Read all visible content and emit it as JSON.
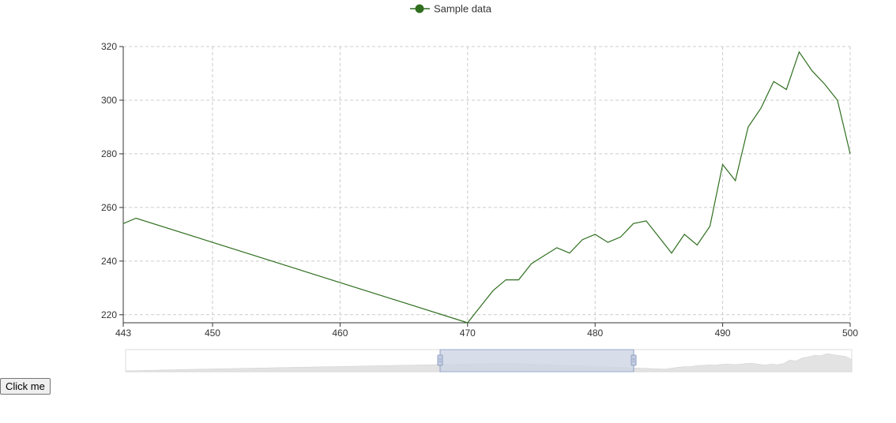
{
  "chart_data": {
    "type": "line",
    "title": "",
    "xlabel": "",
    "ylabel": "",
    "legend": {
      "position": "top-center",
      "entries": [
        "Sample data"
      ]
    },
    "grid": true,
    "xlim": [
      443,
      500
    ],
    "ylim": [
      217,
      320
    ],
    "x_ticks": [
      443,
      450,
      460,
      470,
      480,
      490,
      500
    ],
    "y_ticks": [
      220,
      240,
      260,
      280,
      300,
      320
    ],
    "series": [
      {
        "name": "Sample data",
        "color": "#2f6f1f",
        "x": [
          443,
          444,
          470,
          471,
          472,
          473,
          474,
          475,
          476,
          477,
          478,
          479,
          480,
          481,
          482,
          483,
          484,
          485,
          486,
          487,
          488,
          489,
          490,
          491,
          492,
          493,
          494,
          495,
          496,
          497,
          498,
          499,
          500
        ],
        "y": [
          254,
          256,
          217,
          223,
          229,
          233,
          233,
          239,
          242,
          245,
          243,
          248,
          250,
          247,
          249,
          254,
          255,
          249,
          243,
          250,
          246,
          253,
          276,
          270,
          290,
          297,
          307,
          304,
          318,
          311,
          306,
          300,
          280
        ]
      }
    ]
  },
  "overview": {
    "color_fill": "#e3e3e3",
    "selection_fill": "#cdd5e3",
    "selection_range": [
      470,
      485
    ]
  },
  "button": {
    "label": "Click me"
  }
}
